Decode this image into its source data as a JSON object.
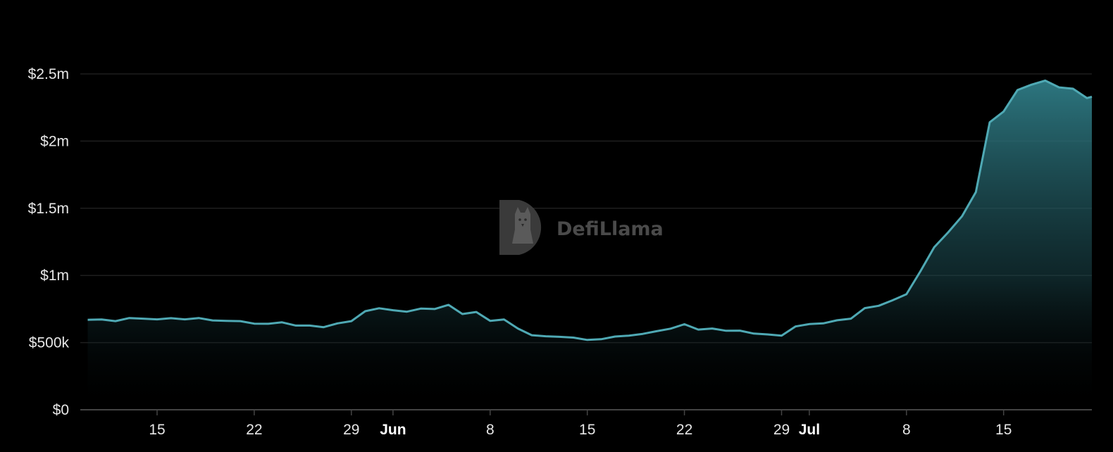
{
  "watermark": {
    "text": "DefiLlama",
    "icon": "defillama-logo-icon"
  },
  "colors": {
    "background": "#000000",
    "line": "#4fa9b4",
    "area_top": "#2f7c86",
    "grid": "#1e1e1e",
    "axis": "#444444",
    "text": "#e6e6e6"
  },
  "chart_data": {
    "type": "area",
    "ylim": [
      0,
      2500000
    ],
    "y_ticks": [
      {
        "value": 0,
        "label": "$0"
      },
      {
        "value": 500000,
        "label": "$500k"
      },
      {
        "value": 1000000,
        "label": "$1m"
      },
      {
        "value": 1500000,
        "label": "$1.5m"
      },
      {
        "value": 2000000,
        "label": "$2m"
      },
      {
        "value": 2500000,
        "label": "$2.5m"
      }
    ],
    "x_ticks": [
      {
        "date": "2024-05-15",
        "label": "15",
        "bold": false
      },
      {
        "date": "2024-05-22",
        "label": "22",
        "bold": false
      },
      {
        "date": "2024-05-29",
        "label": "29",
        "bold": false
      },
      {
        "date": "2024-06-01",
        "label": "Jun",
        "bold": true
      },
      {
        "date": "2024-06-08",
        "label": "8",
        "bold": false
      },
      {
        "date": "2024-06-15",
        "label": "15",
        "bold": false
      },
      {
        "date": "2024-06-22",
        "label": "22",
        "bold": false
      },
      {
        "date": "2024-06-29",
        "label": "29",
        "bold": false
      },
      {
        "date": "2024-07-01",
        "label": "Jul",
        "bold": true
      },
      {
        "date": "2024-07-08",
        "label": "8",
        "bold": false
      },
      {
        "date": "2024-07-15",
        "label": "15",
        "bold": false
      }
    ],
    "grid": true,
    "x": [
      "2024-05-10",
      "2024-05-11",
      "2024-05-12",
      "2024-05-13",
      "2024-05-14",
      "2024-05-15",
      "2024-05-16",
      "2024-05-17",
      "2024-05-18",
      "2024-05-19",
      "2024-05-20",
      "2024-05-21",
      "2024-05-22",
      "2024-05-23",
      "2024-05-24",
      "2024-05-25",
      "2024-05-26",
      "2024-05-27",
      "2024-05-28",
      "2024-05-29",
      "2024-05-30",
      "2024-05-31",
      "2024-06-01",
      "2024-06-02",
      "2024-06-03",
      "2024-06-04",
      "2024-06-05",
      "2024-06-06",
      "2024-06-07",
      "2024-06-08",
      "2024-06-09",
      "2024-06-10",
      "2024-06-11",
      "2024-06-12",
      "2024-06-13",
      "2024-06-14",
      "2024-06-15",
      "2024-06-16",
      "2024-06-17",
      "2024-06-18",
      "2024-06-19",
      "2024-06-20",
      "2024-06-21",
      "2024-06-22",
      "2024-06-23",
      "2024-06-24",
      "2024-06-25",
      "2024-06-26",
      "2024-06-27",
      "2024-06-28",
      "2024-06-29",
      "2024-06-30",
      "2024-07-01",
      "2024-07-02",
      "2024-07-03",
      "2024-07-04",
      "2024-07-05",
      "2024-07-06",
      "2024-07-07",
      "2024-07-08",
      "2024-07-09",
      "2024-07-10",
      "2024-07-11",
      "2024-07-12",
      "2024-07-13",
      "2024-07-14",
      "2024-07-15",
      "2024-07-16",
      "2024-07-17",
      "2024-07-18",
      "2024-07-19",
      "2024-07-20",
      "2024-07-21",
      "2024-07-22",
      "2024-07-23"
    ],
    "values": [
      670000,
      672000,
      660000,
      683000,
      678000,
      673000,
      682000,
      673000,
      683000,
      665000,
      662000,
      660000,
      641000,
      640000,
      651000,
      627000,
      627000,
      615000,
      643000,
      660000,
      734000,
      756000,
      741000,
      730000,
      753000,
      750000,
      781000,
      713000,
      728000,
      662000,
      672000,
      605000,
      555000,
      547000,
      543000,
      537000,
      520000,
      525000,
      545000,
      552000,
      565000,
      585000,
      604000,
      637000,
      597000,
      605000,
      588000,
      589000,
      567000,
      561000,
      552000,
      620000,
      638000,
      643000,
      666000,
      678000,
      757000,
      774000,
      815000,
      860000,
      1030000,
      1210000,
      1320000,
      1440000,
      1620000,
      2140000,
      2220000,
      2380000,
      2420000,
      2450000,
      2400000,
      2390000,
      2320000,
      2330000,
      2330000
    ]
  }
}
